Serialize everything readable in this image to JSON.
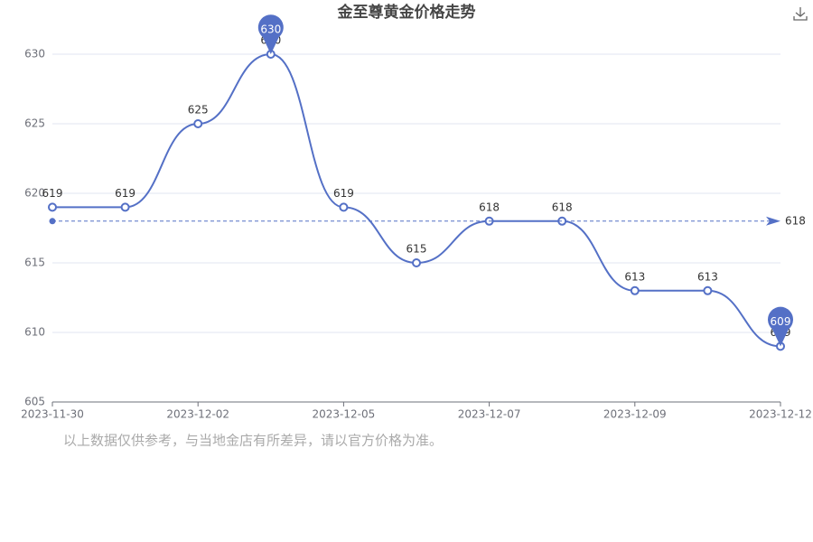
{
  "chart_data": {
    "type": "line",
    "title": "金至尊黄金价格走势",
    "categories": [
      "2023-11-30",
      null,
      "2023-12-02",
      null,
      "2023-12-05",
      null,
      "2023-12-07",
      null,
      "2023-12-09",
      null,
      "2023-12-12"
    ],
    "series": [
      {
        "name": "金至尊",
        "color": "#5470c6",
        "values": [
          619,
          619,
          625,
          630,
          619,
          615,
          618,
          618,
          613,
          613,
          609
        ]
      }
    ],
    "ylim": [
      605,
      630
    ],
    "yticks": [
      605,
      610,
      615,
      620,
      625,
      630
    ],
    "grid": true,
    "max_pin": 630,
    "min_pin": 609,
    "average_line": 618,
    "footnote": "以上数据仅供参考，与当地金店有所差异，请以官方价格为准。"
  }
}
